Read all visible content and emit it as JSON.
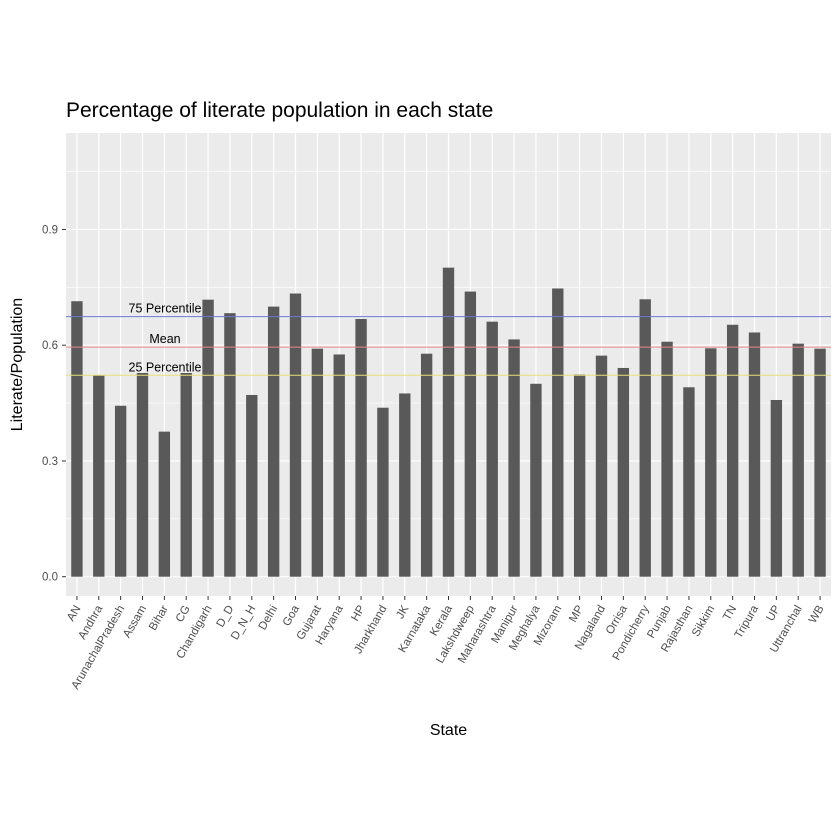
{
  "chart_data": {
    "type": "bar",
    "title": "Percentage of literate population in each state",
    "xlabel": "State",
    "ylabel": "Literate/Population",
    "ylim": [
      -0.05,
      1.15
    ],
    "yticks": [
      0.0,
      0.3,
      0.6,
      0.9
    ],
    "ytick_labels": [
      "0.0",
      "0.3",
      "0.6",
      "0.9"
    ],
    "grid": true,
    "bar_color": "#595959",
    "panel_color": "#ebebeb",
    "categories": [
      "AN",
      "Andhra",
      "ArunachalPradesh",
      "Assam",
      "Bihar",
      "CG",
      "Chandigarh",
      "D_D",
      "D_N_H",
      "Delhi",
      "Goa",
      "Gujarat",
      "Haryana",
      "HP",
      "Jharkhand",
      "JK",
      "Karnataka",
      "Kerala",
      "Lakshdweep",
      "Maharashtra",
      "Manipur",
      "Meghalya",
      "Mizoram",
      "MP",
      "Nagaland",
      "Orrisa",
      "Pondicherry",
      "Punjab",
      "Rajasthan",
      "Sikkim",
      "TN",
      "Tripura",
      "UP",
      "Uttranchal",
      "WB"
    ],
    "values": [
      0.714,
      0.522,
      0.443,
      0.528,
      0.376,
      0.528,
      0.718,
      0.683,
      0.471,
      0.7,
      0.734,
      0.591,
      0.576,
      0.668,
      0.438,
      0.475,
      0.578,
      0.801,
      0.739,
      0.661,
      0.615,
      0.5,
      0.747,
      0.524,
      0.573,
      0.541,
      0.719,
      0.609,
      0.491,
      0.592,
      0.653,
      0.633,
      0.458,
      0.604,
      0.591
    ],
    "reference_lines": [
      {
        "label": "75 Percentile",
        "value": 0.674,
        "color": "#6b7bd6"
      },
      {
        "label": "Mean",
        "value": 0.595,
        "color": "#e88a8a"
      },
      {
        "label": "25 Percentile",
        "value": 0.522,
        "color": "#e6e07a"
      }
    ]
  }
}
